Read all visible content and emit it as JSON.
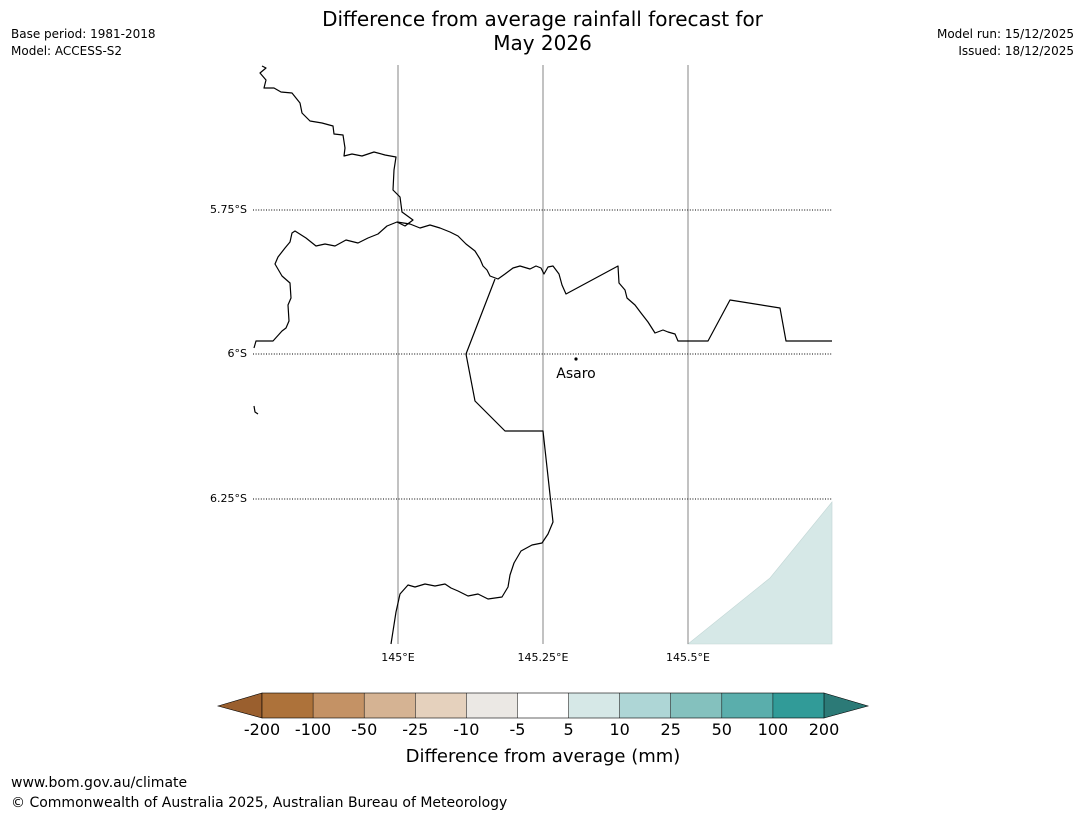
{
  "title": {
    "line1": "Difference from average rainfall forecast for",
    "line2": "May 2026"
  },
  "meta": {
    "base_period": "Base period: 1981-2018",
    "model": "Model: ACCESS-S2",
    "model_run": "Model run: 15/12/2025",
    "issued": "Issued: 18/12/2025"
  },
  "map": {
    "latitude_labels": [
      "5.75°S",
      "6°S",
      "6.25°S"
    ],
    "longitude_labels": [
      "145°E",
      "145.25°E",
      "145.5°E"
    ],
    "place": {
      "name": "Asaro"
    }
  },
  "colorbar": {
    "title": "Difference from average (mm)",
    "tick_labels": [
      "-200",
      "-100",
      "-50",
      "-25",
      "-10",
      "-5",
      "5",
      "10",
      "25",
      "50",
      "100",
      "200"
    ],
    "under_color": "#9a5f2e",
    "over_color": "#2c7a77",
    "colors": [
      "#ad723a",
      "#c49265",
      "#d5b393",
      "#e5d1bd",
      "#ebe8e4",
      "#ffffff",
      "#d6e8e7",
      "#aed6d6",
      "#84c1be",
      "#5aaeac",
      "#319b98"
    ]
  },
  "footer": {
    "url": "www.bom.gov.au/climate",
    "copyright": "© Commonwealth of Australia 2025, Australian Bureau of Meteorology"
  }
}
